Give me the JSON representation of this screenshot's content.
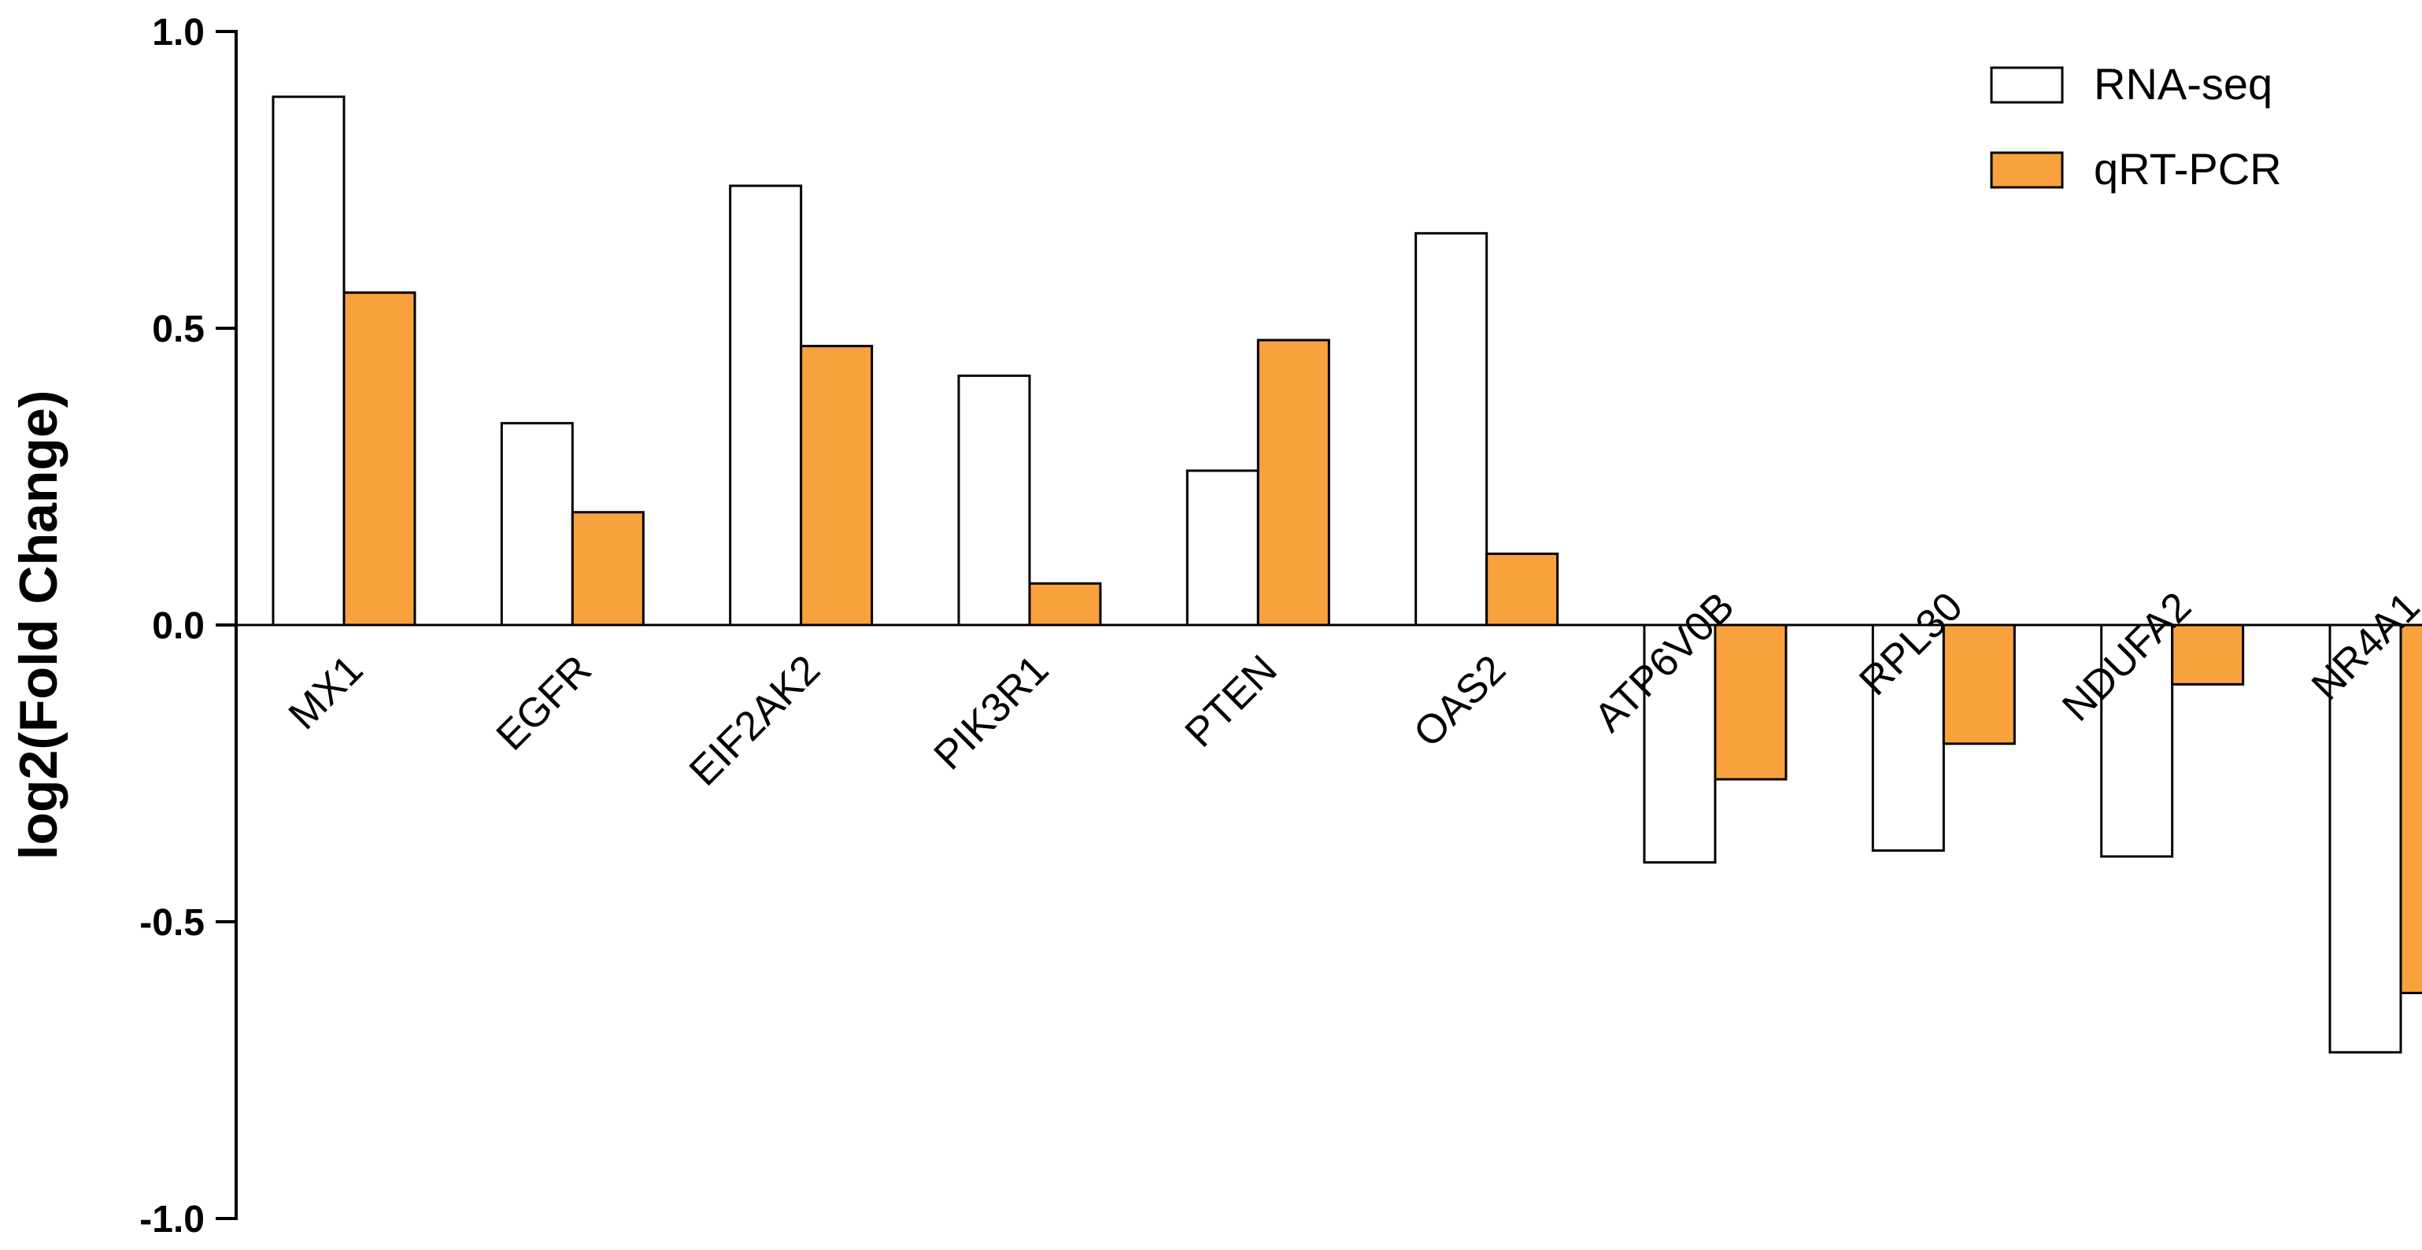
{
  "chart_data": {
    "type": "bar",
    "title": "",
    "xlabel": "",
    "ylabel": "log2(Fold Change)",
    "ylim": [
      -1.0,
      1.0
    ],
    "yticks": [
      "1.0",
      "0.5",
      "0.0",
      "-0.5",
      "-1.0"
    ],
    "categories": [
      "MX1",
      "EGFR",
      "EIF2AK2",
      "PIK3R1",
      "PTEN",
      "OAS2",
      "ATP6V0B",
      "RPL30",
      "NDUFA2",
      "NR4A1"
    ],
    "series": [
      {
        "name": "RNA-seq",
        "color": "#ffffff",
        "values": [
          0.89,
          0.34,
          0.74,
          0.42,
          0.26,
          0.66,
          -0.4,
          -0.38,
          -0.39,
          -0.72
        ]
      },
      {
        "name": "qRT-PCR",
        "color": "#f9a13c",
        "values": [
          0.56,
          0.19,
          0.47,
          0.07,
          0.48,
          0.12,
          -0.26,
          -0.2,
          -0.1,
          -0.62
        ]
      }
    ],
    "legend_position": "top-right",
    "grid": false
  }
}
